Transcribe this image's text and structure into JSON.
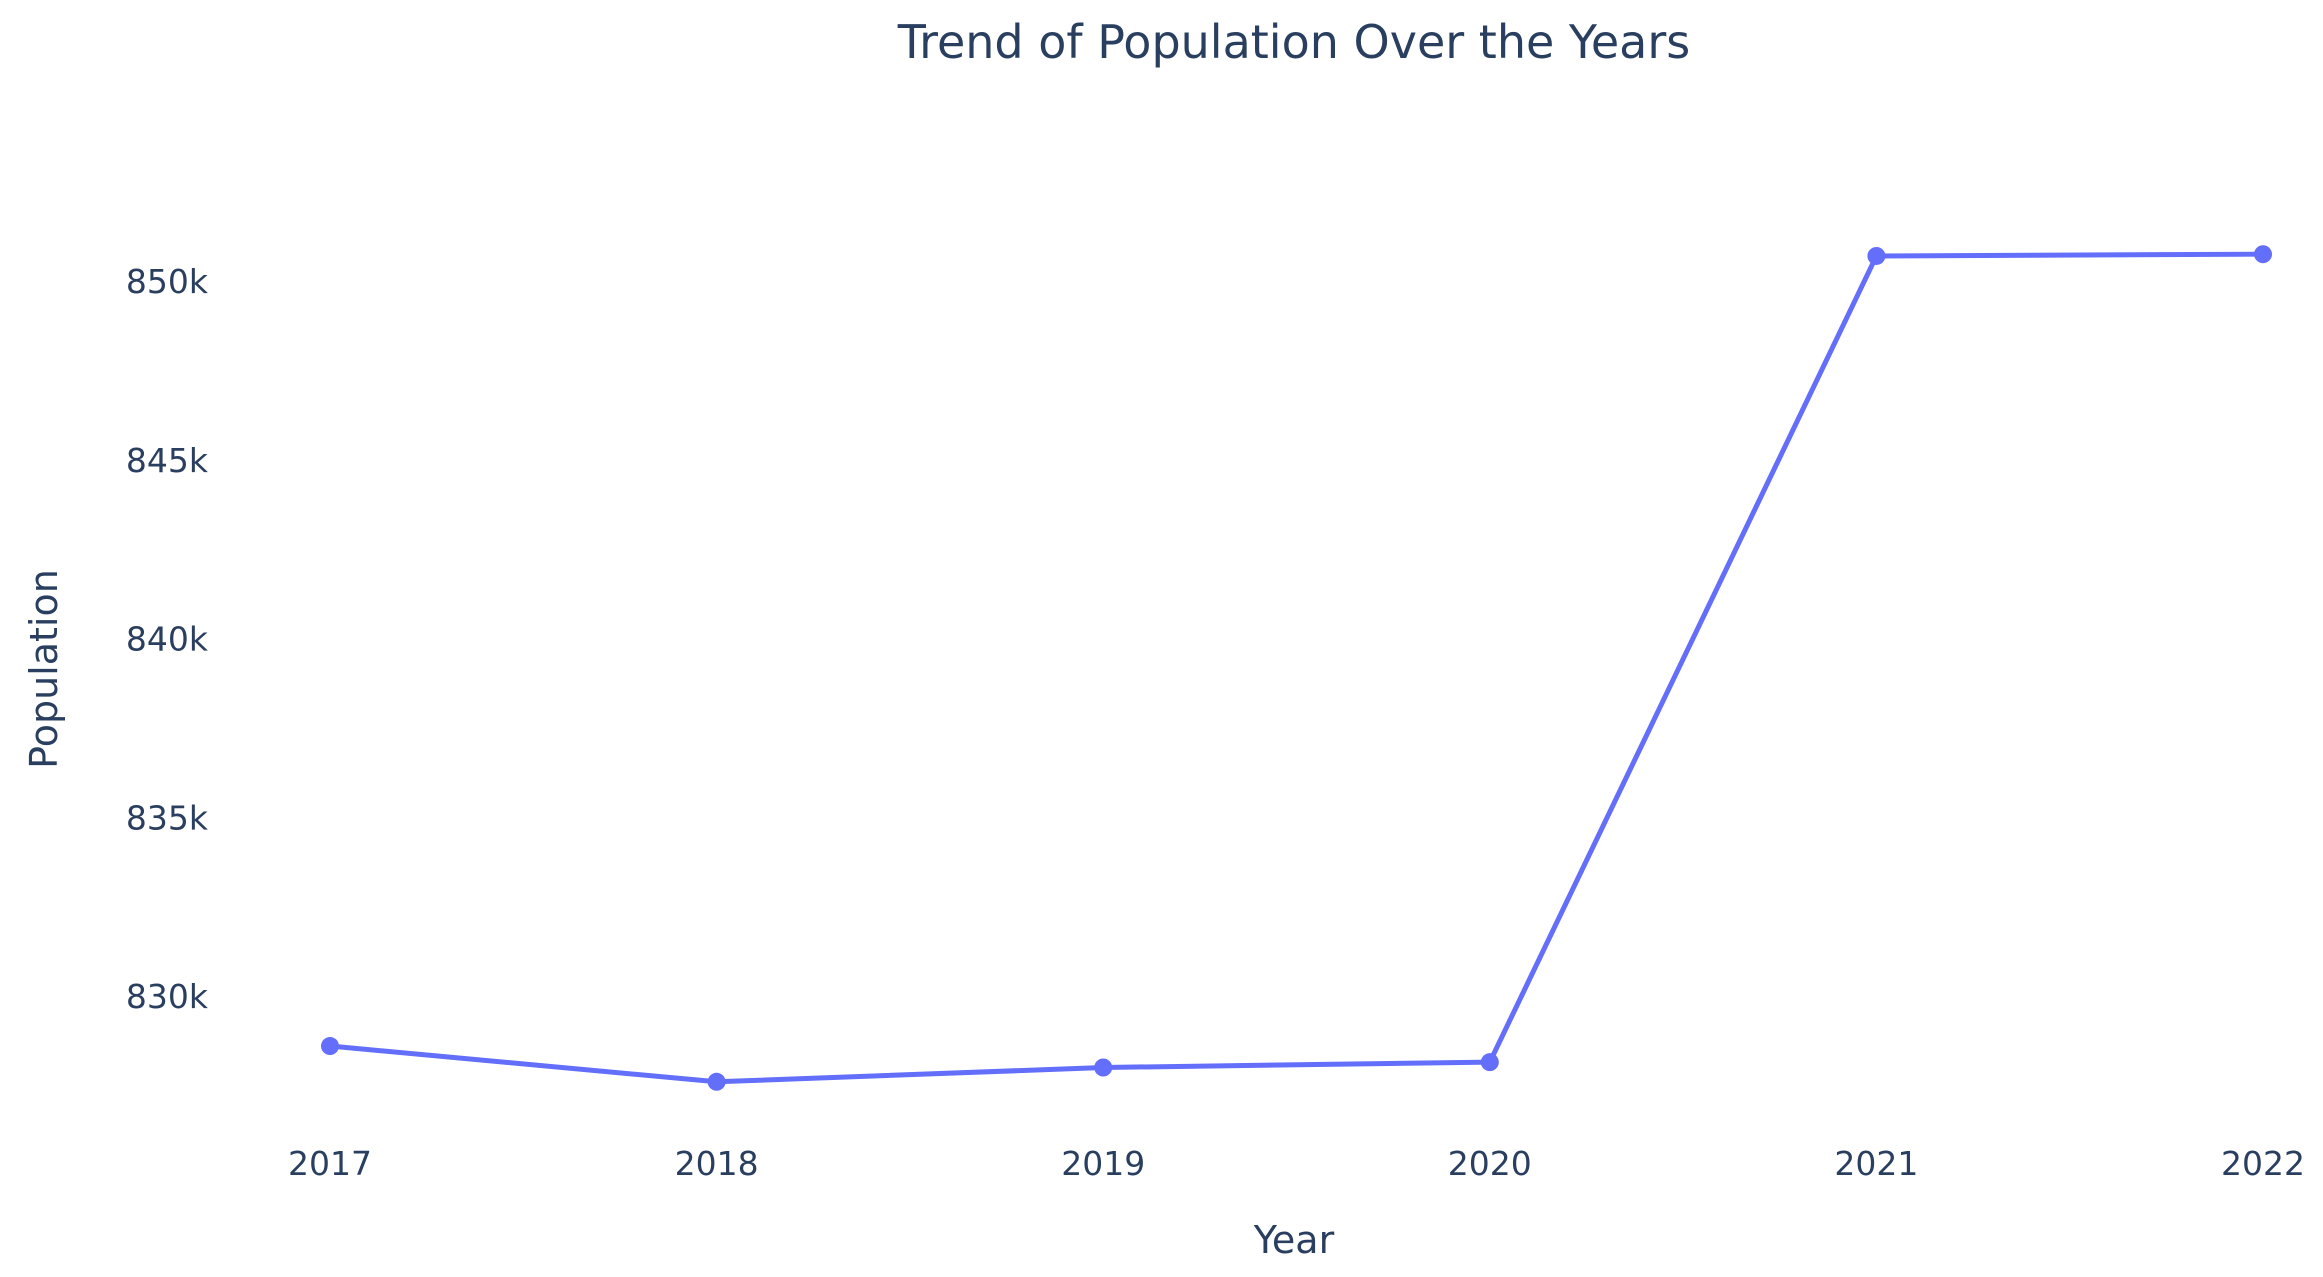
{
  "chart_data": {
    "type": "line",
    "title": "Trend of Population Over the Years",
    "xlabel": "Year",
    "ylabel": "Population",
    "categories": [
      "2017",
      "2018",
      "2019",
      "2020",
      "2021",
      "2022"
    ],
    "series": [
      {
        "values": [
          828600,
          827600,
          828000,
          828150,
          850700,
          850750
        ]
      }
    ],
    "yticks": [
      830000,
      835000,
      840000,
      845000,
      850000
    ],
    "ytick_labels": [
      "830k",
      "835k",
      "840k",
      "845k",
      "850k"
    ],
    "grid": false,
    "legend": "none"
  },
  "colors": {
    "line": "#636efa",
    "text": "#2a3f5f"
  }
}
